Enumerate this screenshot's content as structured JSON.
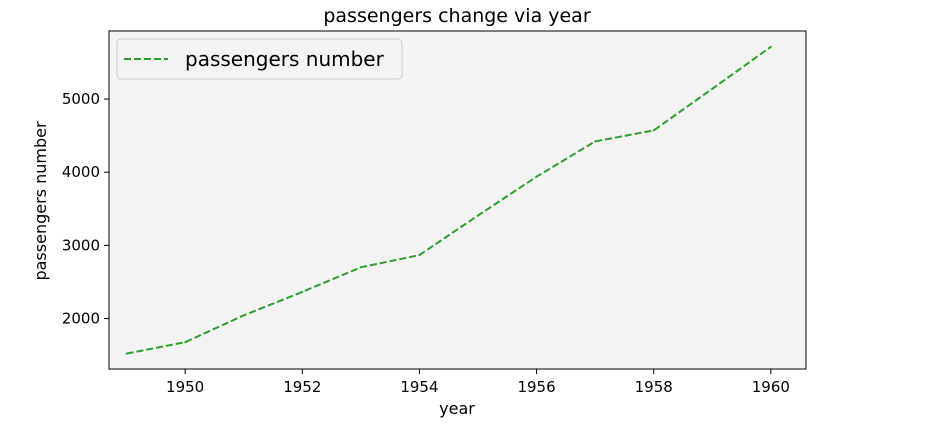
{
  "chart_data": {
    "type": "line",
    "title": "passengers change via year",
    "xlabel": "year",
    "ylabel": "passengers number",
    "x": [
      1949,
      1950,
      1951,
      1952,
      1953,
      1954,
      1955,
      1956,
      1957,
      1958,
      1959,
      1960
    ],
    "series": [
      {
        "name": "passengers number",
        "values": [
          1520,
          1676,
          2042,
          2364,
          2700,
          2867,
          3408,
          3939,
          4421,
          4572,
          5140,
          5714
        ],
        "color": "#2ca02c",
        "line_style": "dashed"
      }
    ],
    "xlim": [
      1948.7,
      1960.6
    ],
    "ylim": [
      1310,
      5930
    ],
    "xticks": [
      1950,
      1952,
      1954,
      1956,
      1958,
      1960
    ],
    "yticks": [
      2000,
      3000,
      4000,
      5000
    ],
    "plot_background": "#f4f4f4",
    "legend_position": "top-left",
    "grid": false
  }
}
